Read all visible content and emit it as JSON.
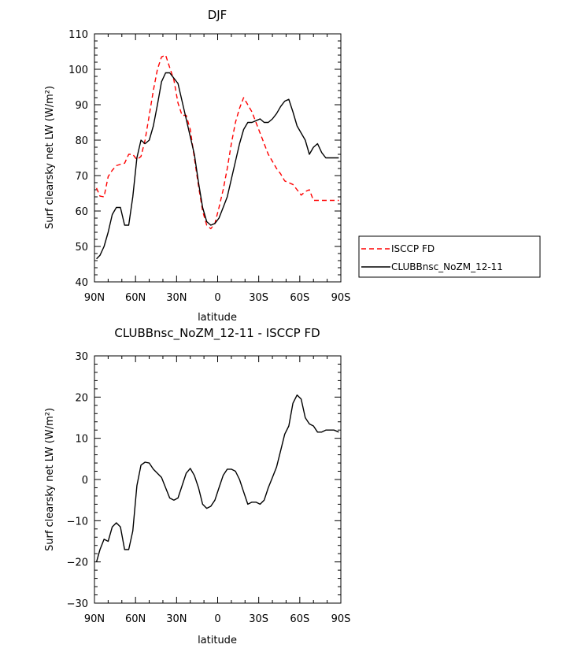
{
  "chart_data": [
    {
      "type": "line",
      "title": "DJF",
      "xlabel": "latitude",
      "ylabel": "Surf clearsky net LW (W/m²)",
      "xlim": [
        90,
        -90
      ],
      "ylim": [
        40,
        110
      ],
      "xticks": [
        90,
        60,
        30,
        0,
        -30,
        -60,
        -90
      ],
      "xtick_labels": [
        "90N",
        "60N",
        "30N",
        "0",
        "30S",
        "60S",
        "90S"
      ],
      "yticks": [
        40,
        50,
        60,
        70,
        80,
        90,
        100,
        110
      ],
      "ytick_labels": [
        "40",
        "50",
        "60",
        "70",
        "80",
        "90",
        "100",
        "110"
      ],
      "legend": {
        "placement": "right"
      },
      "grid": false,
      "series": [
        {
          "name": "ISCCP FD",
          "color": "#ff0000",
          "dash": "dashed",
          "x": [
            88.5,
            86,
            83,
            80,
            77,
            74,
            71,
            68,
            65,
            62,
            59,
            56,
            53,
            50,
            47,
            44,
            41,
            38,
            35,
            32,
            29,
            26,
            23,
            20,
            17,
            14,
            11,
            8,
            5,
            2,
            -1,
            -4,
            -7,
            -10,
            -13,
            -16,
            -19,
            -22,
            -25,
            -28,
            -31,
            -34,
            -37,
            -40,
            -43,
            -46,
            -49,
            -52,
            -55,
            -58,
            -61,
            -64,
            -67,
            -70,
            -73,
            -76,
            -79,
            -82,
            -85,
            -88.5
          ],
          "y": [
            66.5,
            64.2,
            64.0,
            69.7,
            71.5,
            72.8,
            73.2,
            73.5,
            76.0,
            76.0,
            74.5,
            75.4,
            80.0,
            87.0,
            94.0,
            100.0,
            103.5,
            104.0,
            100.5,
            97.0,
            90.5,
            87.0,
            87.0,
            83.0,
            75.0,
            67.0,
            60.0,
            56.0,
            55.0,
            56.5,
            61.0,
            66.0,
            72.0,
            79.0,
            85.0,
            89.0,
            92.0,
            90.0,
            88.0,
            85.0,
            82.0,
            79.0,
            76.0,
            74.0,
            72.0,
            70.5,
            68.5,
            68.0,
            67.5,
            66.0,
            64.5,
            65.5,
            66.0,
            63.0,
            63.0,
            63.0,
            63.0,
            63.0,
            63.0,
            63.0
          ]
        },
        {
          "name": "CLUBBnsc_NoZM_12-11",
          "color": "#000000",
          "dash": "solid",
          "x": [
            88.5,
            86,
            83,
            80,
            77,
            74,
            71,
            68,
            65,
            62,
            59,
            56,
            53,
            50,
            47,
            44,
            41,
            38,
            35,
            32,
            29,
            26,
            23,
            20,
            17,
            14,
            11,
            8,
            5,
            2,
            -1,
            -4,
            -7,
            -10,
            -13,
            -16,
            -19,
            -22,
            -25,
            -28,
            -31,
            -34,
            -37,
            -40,
            -43,
            -46,
            -49,
            -52,
            -55,
            -58,
            -61,
            -64,
            -67,
            -70,
            -73,
            -76,
            -79,
            -82,
            -85,
            -88.5
          ],
          "y": [
            46.5,
            47.5,
            50.0,
            54.0,
            59.0,
            61.0,
            61.0,
            56.0,
            56.0,
            64.0,
            75.0,
            80.0,
            79.0,
            80.0,
            84.0,
            90.0,
            96.5,
            99.0,
            99.0,
            97.5,
            96.0,
            91.0,
            86.0,
            81.0,
            76.0,
            68.0,
            61.0,
            57.0,
            56.0,
            56.5,
            58.0,
            61.0,
            64.0,
            69.0,
            74.0,
            79.0,
            83.0,
            85.0,
            85.0,
            85.5,
            86.0,
            85.0,
            85.0,
            86.0,
            87.5,
            89.5,
            91.0,
            91.5,
            88.0,
            84.0,
            82.0,
            80.0,
            76.0,
            78.0,
            79.0,
            76.5,
            75.0,
            75.0,
            75.0,
            75.0
          ]
        }
      ]
    },
    {
      "type": "line",
      "title": "CLUBBnsc_NoZM_12-11 - ISCCP FD",
      "xlabel": "latitude",
      "ylabel": "Surf clearsky net LW (W/m²)",
      "xlim": [
        90,
        -90
      ],
      "ylim": [
        -30,
        30
      ],
      "xticks": [
        90,
        60,
        30,
        0,
        -30,
        -60,
        -90
      ],
      "xtick_labels": [
        "90N",
        "60N",
        "30N",
        "0",
        "30S",
        "60S",
        "90S"
      ],
      "yticks": [
        -30,
        -20,
        -10,
        0,
        10,
        20,
        30
      ],
      "ytick_labels": [
        "−30",
        "−20",
        "−10",
        "0",
        "10",
        "20",
        "30"
      ],
      "grid": false,
      "series": [
        {
          "color": "#000000",
          "dash": "solid",
          "x": [
            88.5,
            86,
            83,
            80,
            77,
            74,
            71,
            68,
            65,
            62,
            59,
            56,
            53,
            50,
            47,
            44,
            41,
            38,
            35,
            32,
            29,
            26,
            23,
            20,
            17,
            14,
            11,
            8,
            5,
            2,
            -1,
            -4,
            -7,
            -10,
            -13,
            -16,
            -19,
            -22,
            -25,
            -28,
            -31,
            -34,
            -37,
            -40,
            -43,
            -46,
            -49,
            -52,
            -55,
            -58,
            -61,
            -64,
            -67,
            -70,
            -73,
            -76,
            -79,
            -82,
            -85,
            -88.5
          ],
          "y": [
            -20.0,
            -17.0,
            -14.5,
            -15.0,
            -11.5,
            -10.5,
            -11.5,
            -17.0,
            -17.0,
            -12.5,
            -1.5,
            3.5,
            4.2,
            4.0,
            2.5,
            1.5,
            0.5,
            -2.0,
            -4.5,
            -5.0,
            -4.5,
            -1.5,
            1.5,
            2.7,
            1.0,
            -2.0,
            -6.0,
            -7.0,
            -6.5,
            -5.0,
            -2.0,
            1.0,
            2.5,
            2.5,
            2.0,
            0.0,
            -3.0,
            -6.0,
            -5.5,
            -5.5,
            -6.0,
            -5.0,
            -2.0,
            0.5,
            3.0,
            7.0,
            11.0,
            13.0,
            18.5,
            20.5,
            19.5,
            15.0,
            13.5,
            13.0,
            11.5,
            11.5,
            12.0,
            12.0,
            12.0,
            11.5
          ]
        }
      ]
    }
  ],
  "legend": {
    "entries": [
      "ISCCP FD",
      "CLUBBnsc_NoZM_12-11"
    ]
  }
}
